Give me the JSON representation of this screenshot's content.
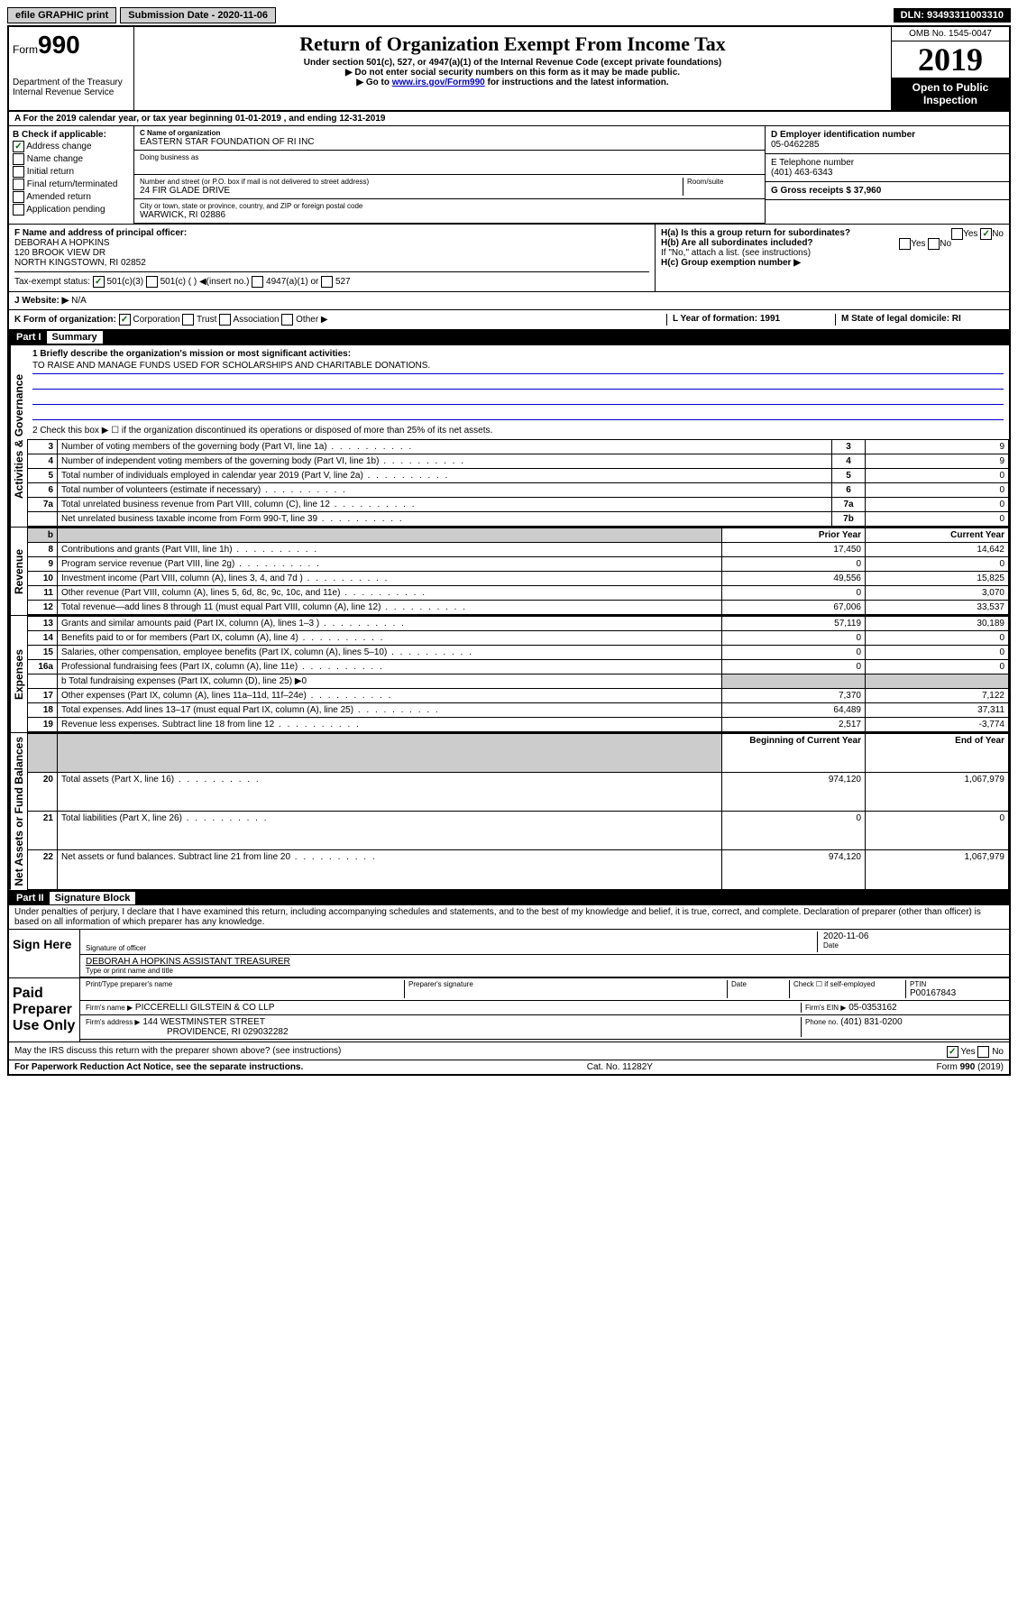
{
  "top": {
    "efile": "efile GRAPHIC print",
    "sub_label": "Submission Date - 2020-11-06",
    "dln": "DLN: 93493311003310"
  },
  "header": {
    "form_word": "Form",
    "form_num": "990",
    "dept": "Department of the Treasury",
    "irs": "Internal Revenue Service",
    "title": "Return of Organization Exempt From Income Tax",
    "sub1": "Under section 501(c), 527, or 4947(a)(1) of the Internal Revenue Code (except private foundations)",
    "sub2": "▶ Do not enter social security numbers on this form as it may be made public.",
    "sub3_pre": "▶ Go to ",
    "sub3_link": "www.irs.gov/Form990",
    "sub3_post": " for instructions and the latest information.",
    "omb": "OMB No. 1545-0047",
    "year": "2019",
    "open": "Open to Public Inspection"
  },
  "row_a": "A For the 2019 calendar year, or tax year beginning 01-01-2019   , and ending 12-31-2019",
  "section_b": {
    "b_label": "B Check if applicable:",
    "addr_change": "Address change",
    "name_change": "Name change",
    "initial": "Initial return",
    "final": "Final return/terminated",
    "amended": "Amended return",
    "app_pending": "Application pending",
    "c_label": "C Name of organization",
    "c_name": "EASTERN STAR FOUNDATION OF RI INC",
    "dba_label": "Doing business as",
    "street_label": "Number and street (or P.O. box if mail is not delivered to street address)",
    "room_label": "Room/suite",
    "street": "24 FIR GLADE DRIVE",
    "city_label": "City or town, state or province, country, and ZIP or foreign postal code",
    "city": "WARWICK, RI  02886",
    "d_label": "D Employer identification number",
    "d_val": "05-0462285",
    "e_label": "E Telephone number",
    "e_val": "(401) 463-6343",
    "g_label": "G Gross receipts $ 37,960"
  },
  "section_f": {
    "f_label": "F  Name and address of principal officer:",
    "name": "DEBORAH A HOPKINS",
    "addr1": "120 BROOK VIEW DR",
    "addr2": "NORTH KINGSTOWN, RI  02852",
    "tax_label": "Tax-exempt status:",
    "c501_3": "501(c)(3)",
    "c501": "501(c) (  ) ◀(insert no.)",
    "c4947": "4947(a)(1) or",
    "c527": "527"
  },
  "section_h": {
    "ha": "H(a)  Is this a group return for subordinates?",
    "hb": "H(b)  Are all subordinates included?",
    "hb_note": "If \"No,\" attach a list. (see instructions)",
    "hc": "H(c)  Group exemption number ▶",
    "yes": "Yes",
    "no": "No"
  },
  "row_i": {
    "label": "I  Website: ▶",
    "val": "N/A"
  },
  "row_j": {
    "label": "J  Website: ▶",
    "val": "N/A"
  },
  "row_k": {
    "label": "K Form of organization:",
    "corp": "Corporation",
    "trust": "Trust",
    "assoc": "Association",
    "other": "Other ▶",
    "l_label": "L Year of formation: 1991",
    "m_label": "M State of legal domicile: RI"
  },
  "part1": {
    "header": "Part I",
    "title": "Summary",
    "q1_label": "1  Briefly describe the organization's mission or most significant activities:",
    "q1_val": "TO RAISE AND MANAGE FUNDS USED FOR SCHOLARSHIPS AND CHARITABLE DONATIONS.",
    "q2": "2   Check this box ▶ ☐  if the organization discontinued its operations or disposed of more than 25% of its net assets.",
    "rows_ag": [
      {
        "n": "3",
        "label": "Number of voting members of the governing body (Part VI, line 1a)",
        "box": "3",
        "val": "9"
      },
      {
        "n": "4",
        "label": "Number of independent voting members of the governing body (Part VI, line 1b)",
        "box": "4",
        "val": "9"
      },
      {
        "n": "5",
        "label": "Total number of individuals employed in calendar year 2019 (Part V, line 2a)",
        "box": "5",
        "val": "0"
      },
      {
        "n": "6",
        "label": "Total number of volunteers (estimate if necessary)",
        "box": "6",
        "val": "0"
      },
      {
        "n": "7a",
        "label": "Total unrelated business revenue from Part VIII, column (C), line 12",
        "box": "7a",
        "val": "0"
      },
      {
        "n": "",
        "label": "Net unrelated business taxable income from Form 990-T, line 39",
        "box": "7b",
        "val": "0"
      }
    ],
    "prior_header": "Prior Year",
    "current_header": "Current Year",
    "revenue": [
      {
        "n": "8",
        "label": "Contributions and grants (Part VIII, line 1h)",
        "prior": "17,450",
        "curr": "14,642"
      },
      {
        "n": "9",
        "label": "Program service revenue (Part VIII, line 2g)",
        "prior": "0",
        "curr": "0"
      },
      {
        "n": "10",
        "label": "Investment income (Part VIII, column (A), lines 3, 4, and 7d )",
        "prior": "49,556",
        "curr": "15,825"
      },
      {
        "n": "11",
        "label": "Other revenue (Part VIII, column (A), lines 5, 6d, 8c, 9c, 10c, and 11e)",
        "prior": "0",
        "curr": "3,070"
      },
      {
        "n": "12",
        "label": "Total revenue—add lines 8 through 11 (must equal Part VIII, column (A), line 12)",
        "prior": "67,006",
        "curr": "33,537"
      }
    ],
    "expenses": [
      {
        "n": "13",
        "label": "Grants and similar amounts paid (Part IX, column (A), lines 1–3 )",
        "prior": "57,119",
        "curr": "30,189"
      },
      {
        "n": "14",
        "label": "Benefits paid to or for members (Part IX, column (A), line 4)",
        "prior": "0",
        "curr": "0"
      },
      {
        "n": "15",
        "label": "Salaries, other compensation, employee benefits (Part IX, column (A), lines 5–10)",
        "prior": "0",
        "curr": "0"
      },
      {
        "n": "16a",
        "label": "Professional fundraising fees (Part IX, column (A), line 11e)",
        "prior": "0",
        "curr": "0"
      }
    ],
    "line16b": "b   Total fundraising expenses (Part IX, column (D), line 25) ▶0",
    "expenses2": [
      {
        "n": "17",
        "label": "Other expenses (Part IX, column (A), lines 11a–11d, 11f–24e)",
        "prior": "7,370",
        "curr": "7,122"
      },
      {
        "n": "18",
        "label": "Total expenses. Add lines 13–17 (must equal Part IX, column (A), line 25)",
        "prior": "64,489",
        "curr": "37,311"
      },
      {
        "n": "19",
        "label": "Revenue less expenses. Subtract line 18 from line 12",
        "prior": "2,517",
        "curr": "-3,774"
      }
    ],
    "begin_header": "Beginning of Current Year",
    "end_header": "End of Year",
    "netassets": [
      {
        "n": "20",
        "label": "Total assets (Part X, line 16)",
        "prior": "974,120",
        "curr": "1,067,979"
      },
      {
        "n": "21",
        "label": "Total liabilities (Part X, line 26)",
        "prior": "0",
        "curr": "0"
      },
      {
        "n": "22",
        "label": "Net assets or fund balances. Subtract line 21 from line 20",
        "prior": "974,120",
        "curr": "1,067,979"
      }
    ],
    "vert_ag": "Activities & Governance",
    "vert_rev": "Revenue",
    "vert_exp": "Expenses",
    "vert_net": "Net Assets or Fund Balances"
  },
  "part2": {
    "header": "Part II",
    "title": "Signature Block",
    "perjury": "Under penalties of perjury, I declare that I have examined this return, including accompanying schedules and statements, and to the best of my knowledge and belief, it is true, correct, and complete. Declaration of preparer (other than officer) is based on all information of which preparer has any knowledge.",
    "sign_here": "Sign Here",
    "sig_officer": "Signature of officer",
    "date": "Date",
    "date_val": "2020-11-06",
    "typed_name": "DEBORAH A HOPKINS  ASSISTANT TREASURER",
    "typed_label": "Type or print name and title",
    "paid": "Paid Preparer Use Only",
    "prep_name_label": "Print/Type preparer's name",
    "prep_sig_label": "Preparer's signature",
    "check_self": "Check ☐ if self-employed",
    "ptin_label": "PTIN",
    "ptin": "P00167843",
    "firm_name_label": "Firm's name    ▶",
    "firm_name": "PICCERELLI GILSTEIN & CO LLP",
    "firm_ein_label": "Firm's EIN ▶",
    "firm_ein": "05-0353162",
    "firm_addr_label": "Firm's address ▶",
    "firm_addr": "144 WESTMINSTER STREET",
    "firm_city": "PROVIDENCE, RI  029032282",
    "phone_label": "Phone no.",
    "phone": "(401) 831-0200",
    "discuss": "May the IRS discuss this return with the preparer shown above? (see instructions)",
    "paperwork": "For Paperwork Reduction Act Notice, see the separate instructions.",
    "catno": "Cat. No. 11282Y",
    "formno": "Form 990 (2019)"
  }
}
